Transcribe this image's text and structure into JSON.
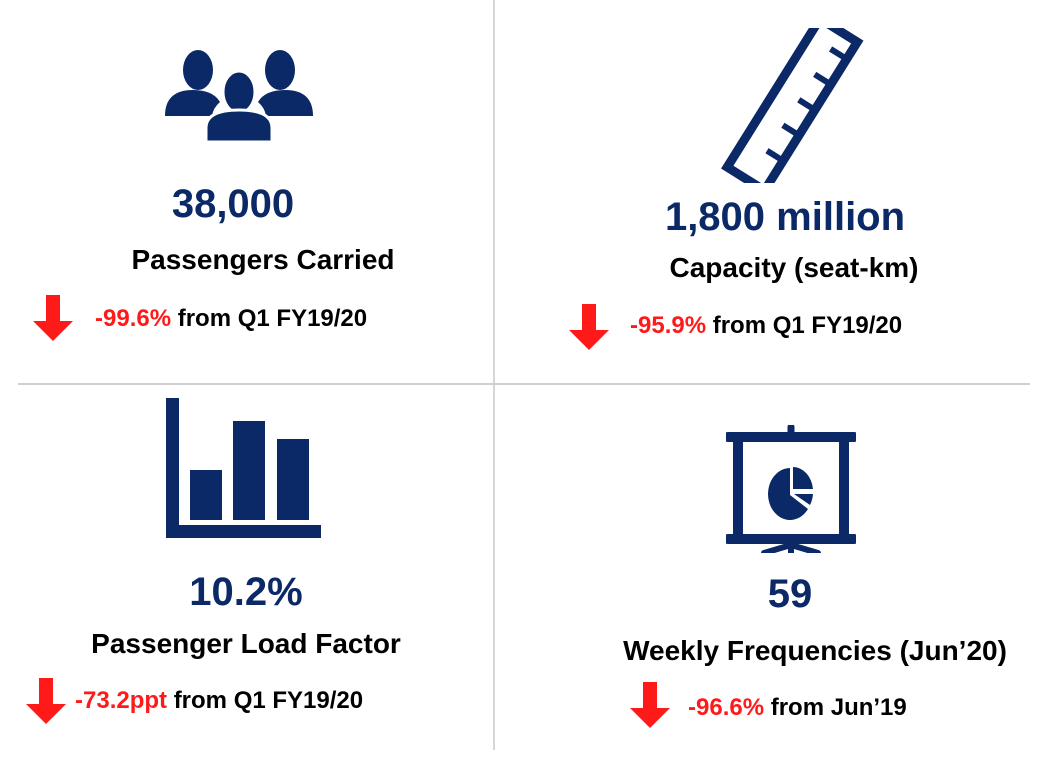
{
  "colors": {
    "navy": "#0b2867",
    "red": "#ff1a1a"
  },
  "metrics": [
    {
      "icon": "people-icon",
      "value": "38,000",
      "label": "Passengers Carried",
      "change": "-99.6%",
      "comparison": "from Q1 FY19/20"
    },
    {
      "icon": "ruler-icon",
      "value": "1,800 million",
      "label": "Capacity (seat-km)",
      "change": "-95.9%",
      "comparison": "from Q1 FY19/20"
    },
    {
      "icon": "bar-chart-icon",
      "value": "10.2%",
      "label": "Passenger Load Factor",
      "change": "-73.2ppt",
      "comparison": "from Q1 FY19/20"
    },
    {
      "icon": "presentation-board-icon",
      "value": "59",
      "label": "Weekly Frequencies (Jun’20)",
      "change": "-96.6%",
      "comparison": "from Jun’19"
    }
  ]
}
